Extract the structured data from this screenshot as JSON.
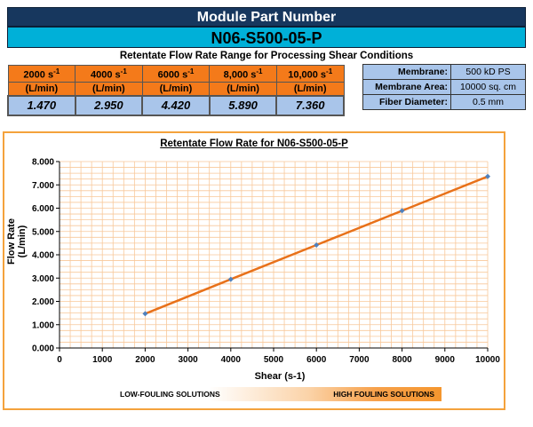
{
  "header": {
    "title": "Module Part Number",
    "part_number": "N06-S500-05-P",
    "subtitle": "Retentate Flow Rate Range for Processing Shear Conditions"
  },
  "shear_table": {
    "columns": [
      {
        "shear": "2000",
        "unit_sup": "-1",
        "rate_unit": "(L/min)",
        "value": "1.470"
      },
      {
        "shear": "4000",
        "unit_sup": "-1",
        "rate_unit": "(L/min)",
        "value": "2.950"
      },
      {
        "shear": "6000",
        "unit_sup": "-1",
        "rate_unit": "(L/min)",
        "value": "4.420"
      },
      {
        "shear": "8,000",
        "unit_sup": "-1",
        "rate_unit": "(L/min)",
        "value": "5.890"
      },
      {
        "shear": "10,000",
        "unit_sup": "-1",
        "rate_unit": "(L/min)",
        "value": "7.360"
      }
    ],
    "unit_base": "s"
  },
  "specs": [
    {
      "label": "Membrane:",
      "value": "500 kD PS"
    },
    {
      "label": "Membrane Area:",
      "value": "10000 sq. cm"
    },
    {
      "label": "Fiber Diameter:",
      "value": "0.5 mm"
    }
  ],
  "fouling": {
    "low_label": "LOW-FOULING SOLUTIONS",
    "high_label": "HIGH FOULING SOLUTIONS"
  },
  "chart_data": {
    "type": "line",
    "title": "Retentate Flow Rate for N06-S500-05-P",
    "xlabel": "Shear (s-1)",
    "ylabel": "Flow Rate (L/min)",
    "xlim": [
      0,
      10000
    ],
    "ylim": [
      0,
      8
    ],
    "x_ticks": [
      "0",
      "1000",
      "2000",
      "3000",
      "4000",
      "5000",
      "6000",
      "7000",
      "8000",
      "9000",
      "10000"
    ],
    "y_ticks": [
      "0.000",
      "1.000",
      "2.000",
      "3.000",
      "4.000",
      "5.000",
      "6.000",
      "7.000",
      "8.000"
    ],
    "x": [
      2000,
      4000,
      6000,
      8000,
      10000
    ],
    "y": [
      1.47,
      2.95,
      4.42,
      5.89,
      7.36
    ],
    "grid": true,
    "line_color": "#e8711a",
    "marker_color": "#4f81bd",
    "grid_color": "#f8c89a"
  },
  "colors": {
    "title_bar": "#17375e",
    "part_bar": "#00b0d8",
    "header_cells": "#f47a1a",
    "value_cells": "#a9c5ea",
    "chart_border": "#f4a23c"
  }
}
